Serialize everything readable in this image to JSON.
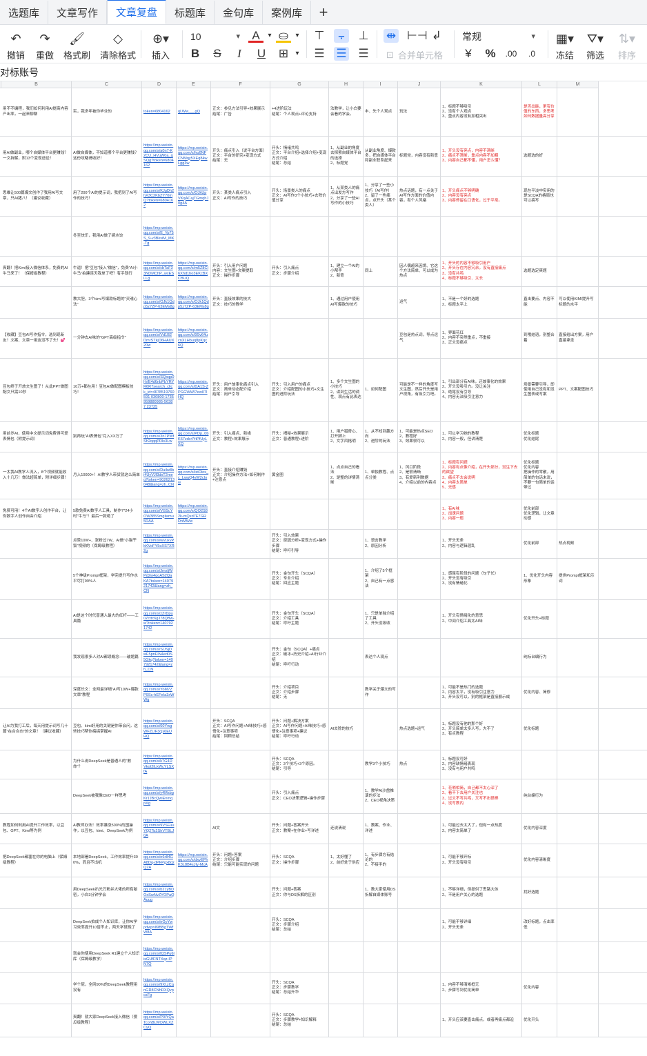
{
  "tabs": [
    "选题库",
    "文章写作",
    "文章复盘",
    "标题库",
    "金句库",
    "案例库"
  ],
  "active_tab": 2,
  "toolbar": {
    "undo": "撤销",
    "redo": "重做",
    "format_painter": "格式刷",
    "clear_format": "清除格式",
    "insert": "插入",
    "font_size": "10",
    "merge": "合并单元格",
    "number_format": "常规",
    "freeze": "冻结",
    "filter": "筛选",
    "sort": "排序",
    "bold": "B",
    "strike": "S",
    "italic": "I",
    "underline": "U",
    "currency": "¥",
    "percent": "%",
    "font_color_glyph": "A",
    "text_color": "#e02424",
    "fill_color": "#f5c400"
  },
  "formula_bar": "对标账号",
  "columns": [
    "B",
    "C",
    "D",
    "E",
    "F",
    "G",
    "H",
    "I",
    "J",
    "K",
    "L",
    "M"
  ],
  "rows": [
    {
      "B": "用不不编程，我们如何利用AI提高内容产出率，一起来聊聊",
      "C": "实，我多年被你毕业的",
      "D": "token=6804162",
      "E": "qLWw___gQ",
      "F": "正文：参见方法引导+效果展示\n结尾：广告",
      "G": "+4进阶玩法\n结尾：个人观点+评论支持",
      "H": "法教学，让小白要会看的学会。",
      "I": "丰、先个人观点",
      "J": "玩法",
      "K": "1、标题不够吸引\n2、没有个人观点\n3、重点内容没有加粗突出",
      "L": "是否出能，更有价值的东西，多思考如何数据量高分享",
      "M": ""
    },
    {
      "B": "用AI做副业，哪个自媒体平台更赚钱？一文拆解，附13个变现途径！",
      "C": "AI做自媒体，不知道哪个平台更赚钱？这份攻略请收好！",
      "D": "https://mp.weixin.qq.com/s/a0n7-K2CU_HVuW0a_qSQg?token=6804162",
      "E": "https://mp.weixin.qq.com/s/hu6NFCNMqy5XEq84wLgg3w",
      "F": "开头：痛点引入（说平台方面）\n正文：平台的研究+变现方式\n结尾：无",
      "G": "开头：情绪共鸣\n正文：平台介绍+选择介绍+变现方式介绍\n结尾：总结",
      "H": "1、从副业的角度去探索自媒体平台的选择\n2、标题党",
      "I": "从副业角度、爆款多，把自媒体平台和副业联系起来",
      "J": "标题党，内容没有新意",
      "K": "1、开头没有亮点，内容不清晰\n2、痛点不清晰，重点内容不加粗\n3、内容自己都不懂，用户怎么懂？",
      "L": "选题选的好",
      "M": ""
    },
    {
      "B": "思维让500篇爆文创作了我用AI写文章，只AI猪八！（建议收藏）",
      "C": "用了200个AI的提示词，我把到了AI写作的技巧！",
      "D": "https://mp.weixin.qq.com/s/KJgDh2hX3C2KbZY70mQ?token=6804162",
      "E": "https://mp.weixin.qq.com/s/OJkUpVKqACajTGmqhJ0g4A",
      "F": "开头：某类人痛点引入\n正文：AI写作的技巧",
      "G": "开头：场景类人的痛点\n正文：AI写作3个小技巧+去除价值分享",
      "H": "1、从某类人的痛点出发方写作\n2、分享了一些AI写作的小技巧",
      "I": "1、分享了一些小技巧（AI写作）\n2、留了一些痛点，点开头（某个类人）",
      "J": "热点话题，有一点关于AI写作方面的价值内容，有个人风格",
      "K": "1、开头痛点不够明确\n2、内容没有亮点\n3、内容停留在口语化，过于平常。",
      "L": "现在平淡中实用的是SCQA的格局也可以搞写",
      "M": ""
    },
    {
      "B": "",
      "C": "冬至快乐，我用AI做了碗水饺",
      "D": "https://mp.weixin.qq.com/s/E_Yp75S_9-v3BksiM_MK-Tg",
      "E": "",
      "F": "",
      "G": "",
      "H": "",
      "I": "",
      "J": "",
      "K": "",
      "L": "",
      "M": ""
    },
    {
      "B": "爽翻！把Kimi接入微信体系，免费的AI牛马来了！（保姆级教程）",
      "C": "牛逼！把\"豆包\"接入\"微信\"，免费\"AI小牛马\"拍建连天我单了吧？有手就行",
      "D": "https://mp.weixin.qq.com/s/cbTaF33NDMChP_wxESLLg",
      "E": "https://mp.weixin.qq.com/s/m5Z8CI6Xhd1ho3EKcBXCBUQ",
      "F": "开头：引入用户问题\n内容：文生图+文案提取\n正文：操作步骤",
      "G": "开头：引入痛点\n正文：步骤介绍",
      "H": "1、建立一个AI的小帮手\n2、新奇",
      "I": "同上",
      "J": "因人偶超来因境、它这个方法简单、可以成为热点",
      "K": "1、开头的内容不够吸引用户\n2、开头存在内容冗余，没有直接痛点\n3、没有共鸣\n4、标题不够吸引、太长",
      "L": "选题选定爽题",
      "M": ""
    },
    {
      "B": "",
      "C": "教大胆，3个kimi写爆款标题的\"灵魂心法\"",
      "D": "https://mp.weixin.qq.com/s/OJk1Qdp5z7ZP-63EMs8g",
      "E": "https://mp.weixin.qq.com/s/OJk1Qdp5z7ZP-63EMs8g",
      "F": "开头：直接效果的技大\n正文：技巧的教学",
      "G": "",
      "H": "1、通过用户使用AI写爆款的技巧",
      "I": "",
      "J": "运气",
      "K": "1、不是一个好的选题\n2、标题太平上",
      "L": "直击要点、内容不能",
      "M": "可以使用KIMI提升写标题的水平"
    },
    {
      "B": "【收藏】豆包AI写作指令，选到现新友！文案、文章一用这没不了头！💕",
      "C": "一分钟去AI味的\"GPT高级指令\"",
      "D": "https://mp.weixin.qq.com/s/Vd1B2DmrSTkjD6HAUX20w",
      "E": "https://mp.weixin.qq.com/s/9Sv64ucnXLHbuq8pKqx6Q",
      "F": "",
      "G": "",
      "H": "",
      "I": "",
      "J": "豆包是热点词，导点运气",
      "K": "1、界面花红\n2、内容不突然重点，不重接\n3、正文没痛点",
      "L": "到哦结语，别整合着",
      "M": "直接给出方案，用户直接拿走"
    },
    {
      "B": "豆包终于开放文生图了！从此PPT做图配文只需10秒",
      "C": "10万+都在用！豆包AI做配图模板技巧！",
      "D": "https://mp.weixin.qq.com/s/SQxqp0hVE4d6nbPbYRYR6R7search_click_id=4678519760591 030800-1735959880985-56387 23725",
      "E": "https://mp.weixin.qq.com/s/DA1S-ZPGGWWI7ew07IHQ",
      "F": "开头：用户故事化痛点引入\n正文：简单动态配介绍\n结尾：用户引导",
      "G": "开头：引入用户的痛点\n正文：介绍配图的小技巧+文生图的进阶玩法",
      "H": "1、多个文生图的小技巧\n2、讲到生活的调性、观点有此表达",
      "I": "1、如何配图",
      "J": "可能是不一样的角度写文生图，然后开头是用户视角，有吸引力吧。",
      "K": "1、引出部分有AI味，还故事化的效果\n2、开头没吸引力。没让关注\n3、绝尾没有引导\n4、内容无法吸引注意力",
      "L": "场景需要引导，即使用自己没有和没生图表或写案",
      "M": "PPT、文案配图技巧"
    },
    {
      "B": "用前岁AI，使用中文提示词免费得可爱表情包（附提示词）",
      "C": "别再玩\"AI表情包\"月入XX万了",
      "D": "https://mp.weixin.qq.com/s/3n7PWfSh2qqqPRls3Lw",
      "E": "https://mp.weixin.qq.com/s/PDp_0bK67zdc4YtPfUyLXQ",
      "F": "开头：引入痛点、新缘\n正文：教程+效果展示",
      "G": "开头：揭秘+效果展示\n正文：普通教程+进阶",
      "H": "1、用户猎奇心、打开脚上\n2、文字风格明",
      "I": "1、从不知到趣方向\n2、进阶的玩法",
      "J": "1、可能是热点SEO\n2、教程好\n3、效果很可以",
      "K": "1、可以学习她的教程\n2、内容一般，但讲清楚",
      "L": "优化标题\n优化结尾",
      "M": ""
    },
    {
      "B": "一太我AI教学人流入，8个视频就能收入十几万！做法超简单，附详细步骤！",
      "C": "月入10000+！AI教学人带货就这么简单",
      "D": "https://mp.weixin.qq.com/s/Duilw8bi4UyVJf3dxT2meq?token=9026213048&lang=zh_CN",
      "E": "https://mp.weixin.qq.com/s/lstDlos_c_LwuQ4vW2cIow",
      "F": "开头：直接介绍赚钱\n正文：介绍操作方法+如何制作+注意点",
      "G": "黄金圈",
      "H": "1、点点自己的看法\n2、是整的详情清晰",
      "I": "1、单独教程、点点分类",
      "J": "1、风口阶段\n2、是很清晰\n3、有爱新利数据\n4、介绍以前的内容点",
      "K": "1、标题有问题\n2、内容有点像介绍，在开头部分，没注下去的欲望\n3、痛点不太会说明\n4、内容太简单\n5、无感",
      "L": "优化标题\n优化内容\n把操作的零散，用简单的句话未说，不要一句简单的话带过",
      "M": ""
    },
    {
      "B": "免费可用！4个AI数字人创作平台，让你数字人创作自由介绍",
      "C": "5款免费AI数字人工具，制作7*24小时\"牛马\"！最后一款绝了",
      "D": "https://mp.weixin.qq.com/s/VGScYOW385SmgIwmu5RAA",
      "E": "https://mp.weixin.qq.com/s/QO2S82k-mQxd7E7GRDnMWw",
      "F": "",
      "G": "",
      "H": "",
      "I": "",
      "J": "",
      "K": "1、有AI味\n2、加速问题\n3、内容一般",
      "L": "优化前部\n优化逻辑，让文章动感",
      "M": ""
    },
    {
      "B": "",
      "C": "点赞10W+、涨粉过7W、AI做\"小猫干饭\"视频的（保姆级教程）",
      "D": "https://mp.weixin.qq.com/s/wVuxvPkKVoFY5oXS7XR2g",
      "E": "",
      "F": "",
      "G": "开头：引入效果\n正文：原因分析+变现方式+操作步骤\n结尾：呼吁引导",
      "H": "",
      "I": "1、语言教学\n2、原因分析",
      "J": "",
      "K": "1、开头无条\n2、内容与逻辑混乱",
      "L": "优化前部",
      "M": "热点视频"
    },
    {
      "B": "",
      "C": "5个神级Prompt框架，学完提升写作水平尽打99%人",
      "D": "https://mp.weixin.qq.com/s/JmsljWPd2w4qoAS2QaKA7token=1407921742&lang=zh_CN",
      "E": "",
      "F": "",
      "G": "开头：金句开头（SCQA）\n正文：专业介绍\n结尾：回应主题",
      "H": "",
      "I": "1、介绍了5个框架\n2、自己有一点感法",
      "J": "",
      "K": "1、感尾有阶段的问题（句子长）\n2、开头没有吸引\n3、没有情绪化",
      "L": "1、优化开头内容形象",
      "M": "提供Prompt框架和示词"
    },
    {
      "B": "",
      "C": "AI是这个时代普通人最大的红杆——工具篇",
      "D": "https://mp.weixin.qq.com/s/zZrDpu0Zcdc6gJ78QBw-w?token=1407921742",
      "E": "",
      "F": "",
      "G": "开头：金句开头（SCQA）\n正文：介绍工具\n结尾：呼吁主题",
      "H": "",
      "I": "1、只是单独介绍了工具\n2、开头没吸收",
      "J": "",
      "K": "1、开头有情绪化的意思\n2、中间介绍工具太AI味",
      "L": "优化开头+标题",
      "M": ""
    },
    {
      "B": "",
      "C": "我发现很多人对AI都误概念——破题篇",
      "D": "https://mp.weixin.qq.com/s/SUSjDwF5pnFIN4ed0S5Gkq?token=1407921742&lang=zh_CN",
      "E": "",
      "F": "",
      "G": "开头：金句（SCQA）+痛点\n正文：破冰+历史介绍+AI行业介绍\n结尾：呼吁行动",
      "H": "",
      "I": "表达个人观点",
      "J": "",
      "K": "",
      "L": "纯标台编行为",
      "M": ""
    },
    {
      "B": "",
      "C": "深度长文：全网最详细\"AI写10W+爆款文章\"教程",
      "D": "https://mp.weixin.qq.com/s/YoM7ZP9Sc-hEFeIa3xWWg",
      "E": "",
      "F": "",
      "G": "开头：介绍项目\n正文：介绍步骤\n结尾：无",
      "H": "",
      "I": "教学关于爆文的写作",
      "J": "",
      "K": "1、可能不是热门的选题\n2、内容太平，没有吸引注意力\n3、开头没可以，别的框架是直接展示成",
      "L": "优化内容、简修",
      "M": ""
    },
    {
      "B": "让AI为我打工后，每天用提示词写几十篇\"在合合向\"的文章！（建议收藏）",
      "C": "豆包、kimi好用的关键是你带会问，这些技巧帮你搞搞掌握AI",
      "D": "https://mp.weixin.qq.com/s/60YwgWFZLIF3cjs6EUHQ",
      "E": "",
      "F": "开头：SCQA\n正文：AI写作问题+AI味技巧+感悟化+注意事项\n结尾：回顾总结",
      "G": "开头：问题+解决方案\n正文：AI写作问题+AI味技巧+感悟化+注意事项+建议\n结尾：呼吁行动",
      "H": "AI去除的技巧",
      "I": "",
      "J": "热点选题+运气",
      "K": "1、标题没有他的那个好\n2、开头简单太多人写，大不了\n3、有点教程",
      "L": "优化标题",
      "M": ""
    },
    {
      "B": "",
      "C": "为什么说DeepSeek是普通人的\"救命\"？",
      "D": "https://mp.weixin.qq.com/s/k7G4DVkoI2ILkWcYLSXfA",
      "E": "",
      "F": "",
      "G": "开头：SCQA\n正文：3个技巧+3个原因。\n结尾：引导",
      "H": "",
      "I": "教学3个小技巧",
      "J": "热点",
      "K": "1、标题没可好\n2、内容缺情绪表现\n3、没有与用户共鸣",
      "L": "",
      "M": ""
    },
    {
      "B": "",
      "C": "DeepSeek被我像CEO一样思考",
      "D": "https://mp.weixin.qq.com/s/y4MsbgKr1JBcQwiEnmqpXg",
      "E": "",
      "F": "",
      "G": "开头：引入痛点\n正文：CEO决策逻辑+操作步骤",
      "H": "",
      "I": "1、教学AI沙盘推演的步法\n2、CEO视角决策",
      "J": "",
      "K": "1、花哨相简，自己都不太心深了\n2、看不下去用户关注也\n3、过文不写共鸣，又写不出很棒\n4、没写教内",
      "L": "纯台编行为",
      "M": ""
    },
    {
      "B": "教程如何利用AI提升工作效率，以豆包、GPT、Kimi等为例",
      "C": "AI教师办法！效率暴涨500%的国操作，以豆包、kimi、DeepSeek为例",
      "D": "https://mp.weixin.qq.com/s/9VSFuuYQ27b2ShVTBLJ0A",
      "E": "",
      "F": "AI文",
      "G": "开头：问题+答案开头\n正文：教案+在作业+写详述",
      "H": "还说清说",
      "I": "1、教案、作业、详述",
      "J": "",
      "K": "1、可能过去太大了，但有一点热度\n2、内容太简单了",
      "L": "优化内容深度",
      "M": ""
    },
    {
      "B": "把DeepSeek都塞在你的电脑上（保姆级教程）",
      "C": "本地部署DeepSeek，工作效率提升300%，而且不出机",
      "D": "https://mp.weixin.qq.com/s/n6r84GA8Dq-dPFPgx8dzQ2A",
      "E": "https://mp.weixin.qq.com/s/dxvEPhK3L8B4sJIy-McA",
      "F": "开头：问题+答案\n正文：介绍步骤\n结尾：只能可能实现的问题",
      "G": "开头：SCQA\n正文：操作步骤",
      "H": "1、太好懂了\n2、前好处于供应",
      "I": "1、有步骤方有结论的\n2、不接手的",
      "J": "",
      "K": "1、可能不够开标\n2、开头没有吸引",
      "L": "优化内容清晰度",
      "M": ""
    },
    {
      "B": "",
      "C": "用DeepSeek扒光万粉并大佬的所有秘密，小白3分钟学会",
      "D": "https://mp.weixin.qq.com/s/b21yBDOxSwNvZYOPaQAuug",
      "E": "",
      "F": "",
      "G": "开头：问题+答案\n正文：你与DS拆解的区别",
      "H": "",
      "I": "1、教大家使用DS拆解自媒体账号",
      "J": "",
      "K": "1、不够详细，但提供了思路大体\n2、不是用户关心的选题",
      "L": "找好选题",
      "M": ""
    },
    {
      "B": "",
      "C": "DeepSeek拍成个人知识库，让你AI学习效率提升10倍不止，两天学就晚了",
      "D": "https://mp.weixin.qq.com/s/nGyYwpdwpnIl9BBgTWfW8A",
      "E": "",
      "F": "",
      "G": "开头：SCQA\n正文：步骤介绍\n结尾：总结",
      "H": "",
      "I": "",
      "J": "",
      "K": "1、可能不够详细\n2、开头无条",
      "L": "改好标题，点击率低",
      "M": ""
    },
    {
      "B": "",
      "C": "就会你使用DeepSeek R1建立个人知识库（保姆级教学）",
      "D": "https://mp.weixin.qq.com/s/lQSPu6lisGUfFNTXqz-IPN7Q",
      "E": "",
      "F": "",
      "G": "",
      "H": "",
      "I": "",
      "J": "",
      "K": "",
      "L": "",
      "M": ""
    },
    {
      "B": "",
      "C": "学个屁，全网90%的DeepSeek教程用没有",
      "D": "https://mp.weixin.qq.com/s/9Xl,zCqnGR8CNhRXQvpcsFg",
      "E": "",
      "F": "",
      "G": "开头：SCQA\n正文：步骤教学\n结尾：总结升华",
      "H": "",
      "I": "",
      "J": "",
      "K": "1、内容不够清晰框无\n2、步骤写到优化简单",
      "L": "优化内容",
      "M": ""
    },
    {
      "B": "",
      "C": "爽翻！就大家DeepSeek接入微信（傻瓜级教程）",
      "D": "https://mp.weixin.qq.com/s/P0IYQaTcohBLWOWLXZCyQ",
      "E": "",
      "F": "",
      "G": "开头：SCQA\n正文：步骤教学+知识解释\n结尾：总结",
      "H": "",
      "I": "",
      "J": "",
      "K": "1、开头应该要直击痛点，或者再痛点都迫",
      "L": "优化开头",
      "M": ""
    }
  ]
}
